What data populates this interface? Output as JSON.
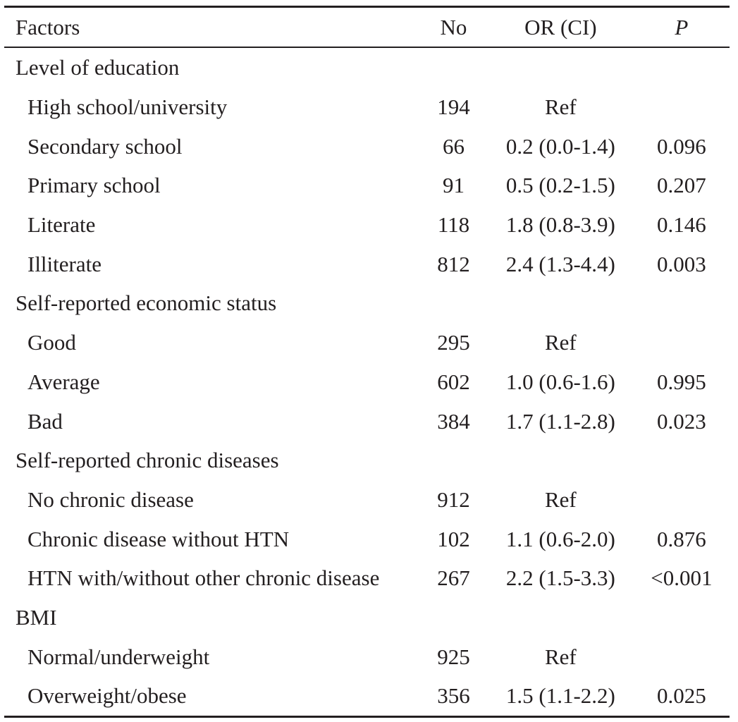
{
  "table": {
    "headers": [
      "Factors",
      "No",
      "OR (CI)",
      "P"
    ],
    "rows": [
      {
        "type": "group",
        "factor": "Level of education"
      },
      {
        "type": "item",
        "factor": "High school/university",
        "no": "194",
        "or": "Ref",
        "p": ""
      },
      {
        "type": "item",
        "factor": "Secondary school",
        "no": "66",
        "or": "0.2 (0.0-1.4)",
        "p": "0.096"
      },
      {
        "type": "item",
        "factor": "Primary school",
        "no": "91",
        "or": "0.5 (0.2-1.5)",
        "p": "0.207"
      },
      {
        "type": "item",
        "factor": "Literate",
        "no": "118",
        "or": "1.8 (0.8-3.9)",
        "p": "0.146"
      },
      {
        "type": "item",
        "factor": "Illiterate",
        "no": "812",
        "or": "2.4 (1.3-4.4)",
        "p": "0.003"
      },
      {
        "type": "group",
        "factor": "Self-reported economic status"
      },
      {
        "type": "item",
        "factor": "Good",
        "no": "295",
        "or": "Ref",
        "p": ""
      },
      {
        "type": "item",
        "factor": "Average",
        "no": "602",
        "or": "1.0 (0.6-1.6)",
        "p": "0.995"
      },
      {
        "type": "item",
        "factor": "Bad",
        "no": "384",
        "or": "1.7 (1.1-2.8)",
        "p": "0.023"
      },
      {
        "type": "group",
        "factor": "Self-reported chronic diseases"
      },
      {
        "type": "item",
        "factor": "No chronic disease",
        "no": "912",
        "or": "Ref",
        "p": ""
      },
      {
        "type": "item",
        "factor": "Chronic disease without HTN",
        "no": "102",
        "or": "1.1 (0.6-2.0)",
        "p": "0.876"
      },
      {
        "type": "item",
        "factor": "HTN with/without other chronic disease",
        "no": "267",
        "or": "2.2 (1.5-3.3)",
        "p": "<0.001"
      },
      {
        "type": "group",
        "factor": "BMI"
      },
      {
        "type": "item",
        "factor": "Normal/underweight",
        "no": "925",
        "or": "Ref",
        "p": ""
      },
      {
        "type": "item",
        "factor": "Overweight/obese",
        "no": "356",
        "or": "1.5 (1.1-2.2)",
        "p": "0.025"
      }
    ]
  }
}
